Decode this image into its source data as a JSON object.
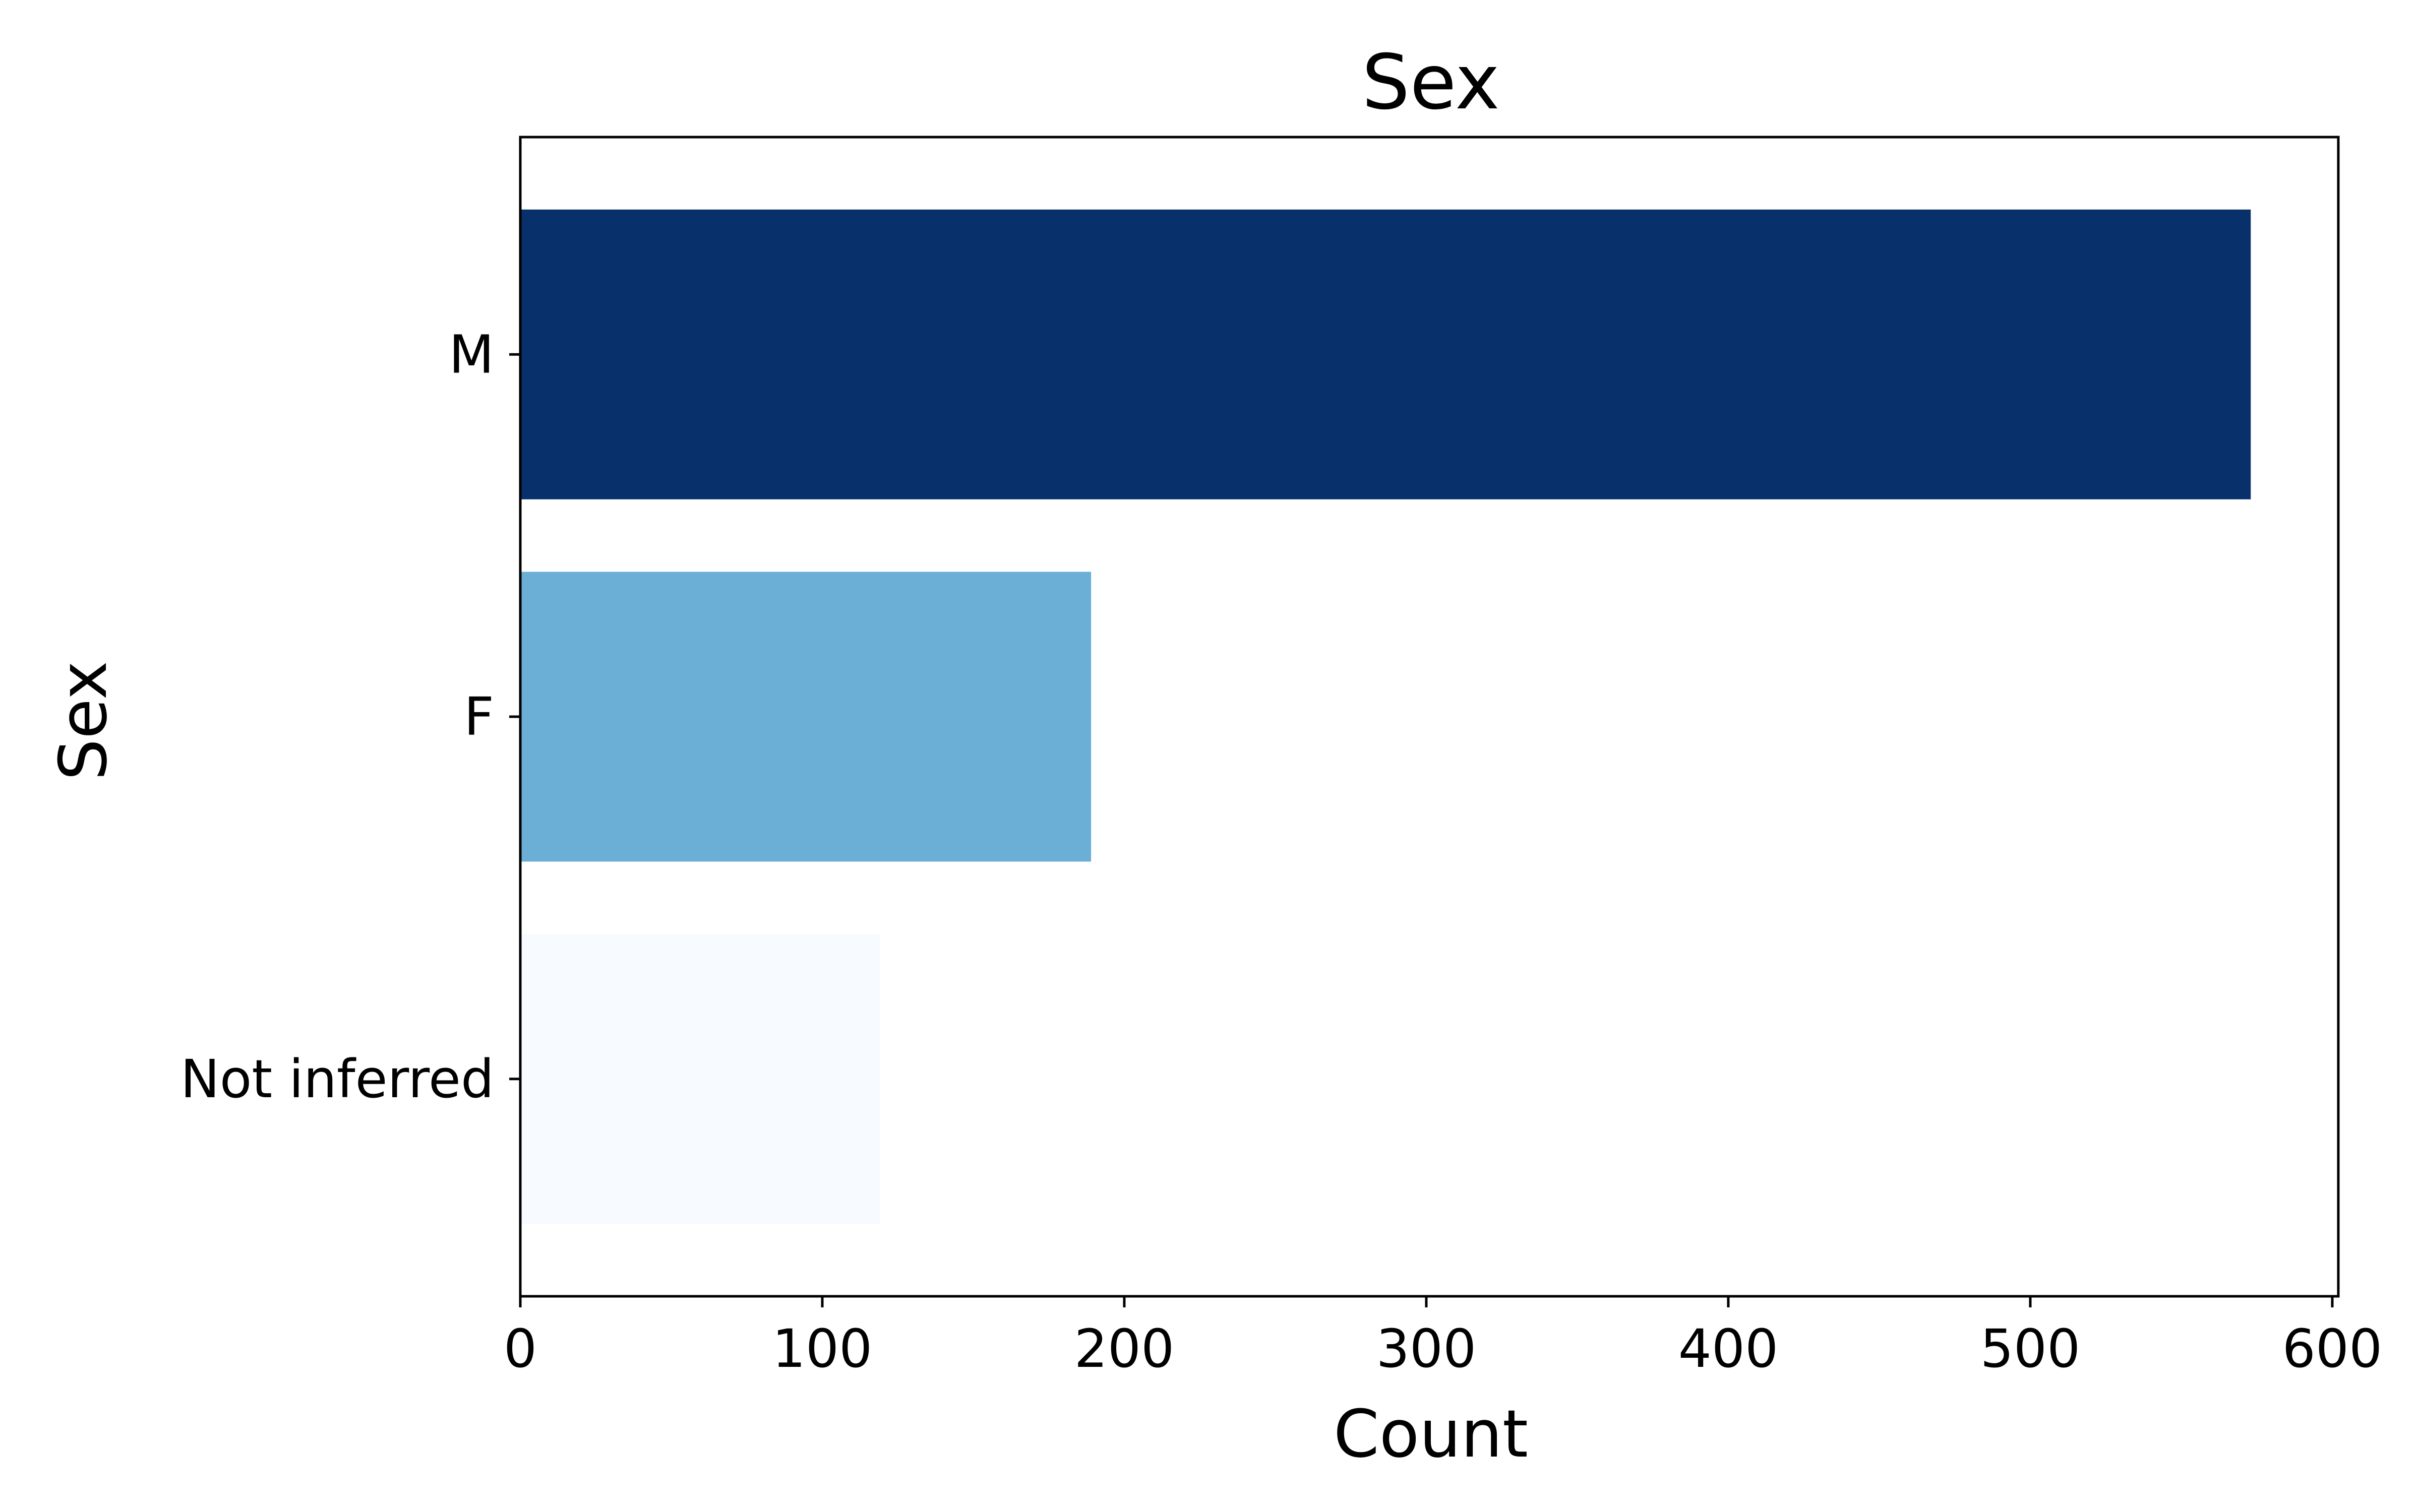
{
  "chart_data": {
    "type": "bar",
    "orientation": "horizontal",
    "title": "Sex",
    "xlabel": "Count",
    "ylabel": "Sex",
    "categories": [
      "M",
      "F",
      "Not inferred"
    ],
    "values": [
      573,
      189,
      119
    ],
    "colors": [
      "#08306b",
      "#6baed6",
      "#f7fbff"
    ],
    "xlim": [
      0,
      602
    ],
    "xticks": [
      0,
      100,
      200,
      300,
      400,
      500,
      600
    ],
    "grid": false,
    "legend": "none"
  }
}
